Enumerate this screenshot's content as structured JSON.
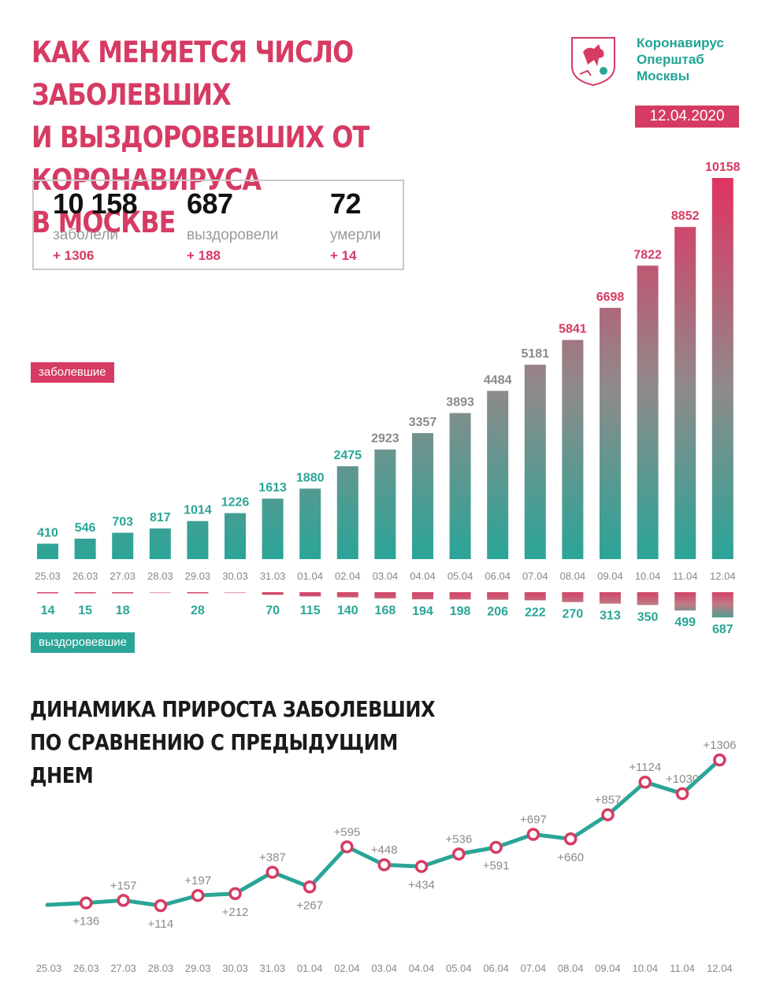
{
  "header": {
    "title": "КАК МЕНЯЕТСЯ ЧИСЛО ЗАБОЛЕВШИХ\nИ ВЫЗДОРОВЕВШИХ ОТ КОРОНАВИРУСА\nВ МОСКВЕ",
    "brand": "Коронавирус\nОперштаб\nМосквы",
    "date": "12.04.2020"
  },
  "summary": {
    "infected": {
      "value": "10 158",
      "label": "заболели",
      "delta": "+ 1306"
    },
    "recovered": {
      "value": "687",
      "label": "выздоровели",
      "delta": "+ 188"
    },
    "died": {
      "value": "72",
      "label": "умерли",
      "delta": "+ 14"
    }
  },
  "legend": {
    "infected": "заболевшие",
    "recovered": "выздоровевшие"
  },
  "colors": {
    "accent": "#d63b63",
    "teal": "#2aa597"
  },
  "chart_data": [
    {
      "type": "bar",
      "categories": [
        "25.03",
        "26.03",
        "27.03",
        "28.03",
        "29.03",
        "30.03",
        "31.03",
        "01.04",
        "02.04",
        "03.04",
        "04.04",
        "05.04",
        "06.04",
        "07.04",
        "08.04",
        "09.04",
        "10.04",
        "11.04",
        "12.04"
      ],
      "series": [
        {
          "name": "заболевшие",
          "values": [
            410,
            546,
            703,
            817,
            1014,
            1226,
            1613,
            1880,
            2475,
            2923,
            3357,
            3893,
            4484,
            5181,
            5841,
            6698,
            7822,
            8852,
            10158
          ]
        },
        {
          "name": "выздоровевшие",
          "values": [
            14,
            15,
            18,
            null,
            28,
            null,
            70,
            115,
            140,
            168,
            194,
            198,
            206,
            222,
            270,
            313,
            350,
            499,
            687
          ]
        }
      ],
      "ylim": [
        0,
        10158
      ]
    },
    {
      "type": "line",
      "title": "ДИНАМИКА ПРИРОСТА ЗАБОЛЕВШИХ\nПО СРАВНЕНИЮ С ПРЕДЫДУЩИМ ДНЕМ",
      "categories": [
        "25.03",
        "26.03",
        "27.03",
        "28.03",
        "29.03",
        "30.03",
        "31.03",
        "01.04",
        "02.04",
        "03.04",
        "04.04",
        "05.04",
        "06.04",
        "07.04",
        "08.04",
        "09.04",
        "10.04",
        "11.04",
        "12.04"
      ],
      "values": [
        null,
        136,
        157,
        114,
        197,
        212,
        387,
        267,
        595,
        448,
        434,
        536,
        591,
        697,
        660,
        857,
        1124,
        1030,
        1306
      ],
      "labels": [
        "",
        "+136",
        "+157",
        "+114",
        "+197",
        "+212",
        "+387",
        "+267",
        "+595",
        "+448",
        "+434",
        "+536",
        "+591",
        "+697",
        "+660",
        "+857",
        "+1124",
        "+1030",
        "+1306"
      ],
      "label_positions": [
        "",
        "below",
        "above",
        "below",
        "above",
        "below",
        "above",
        "below",
        "above",
        "above",
        "below",
        "above",
        "below",
        "above",
        "below",
        "above",
        "above",
        "above",
        "above"
      ]
    }
  ]
}
